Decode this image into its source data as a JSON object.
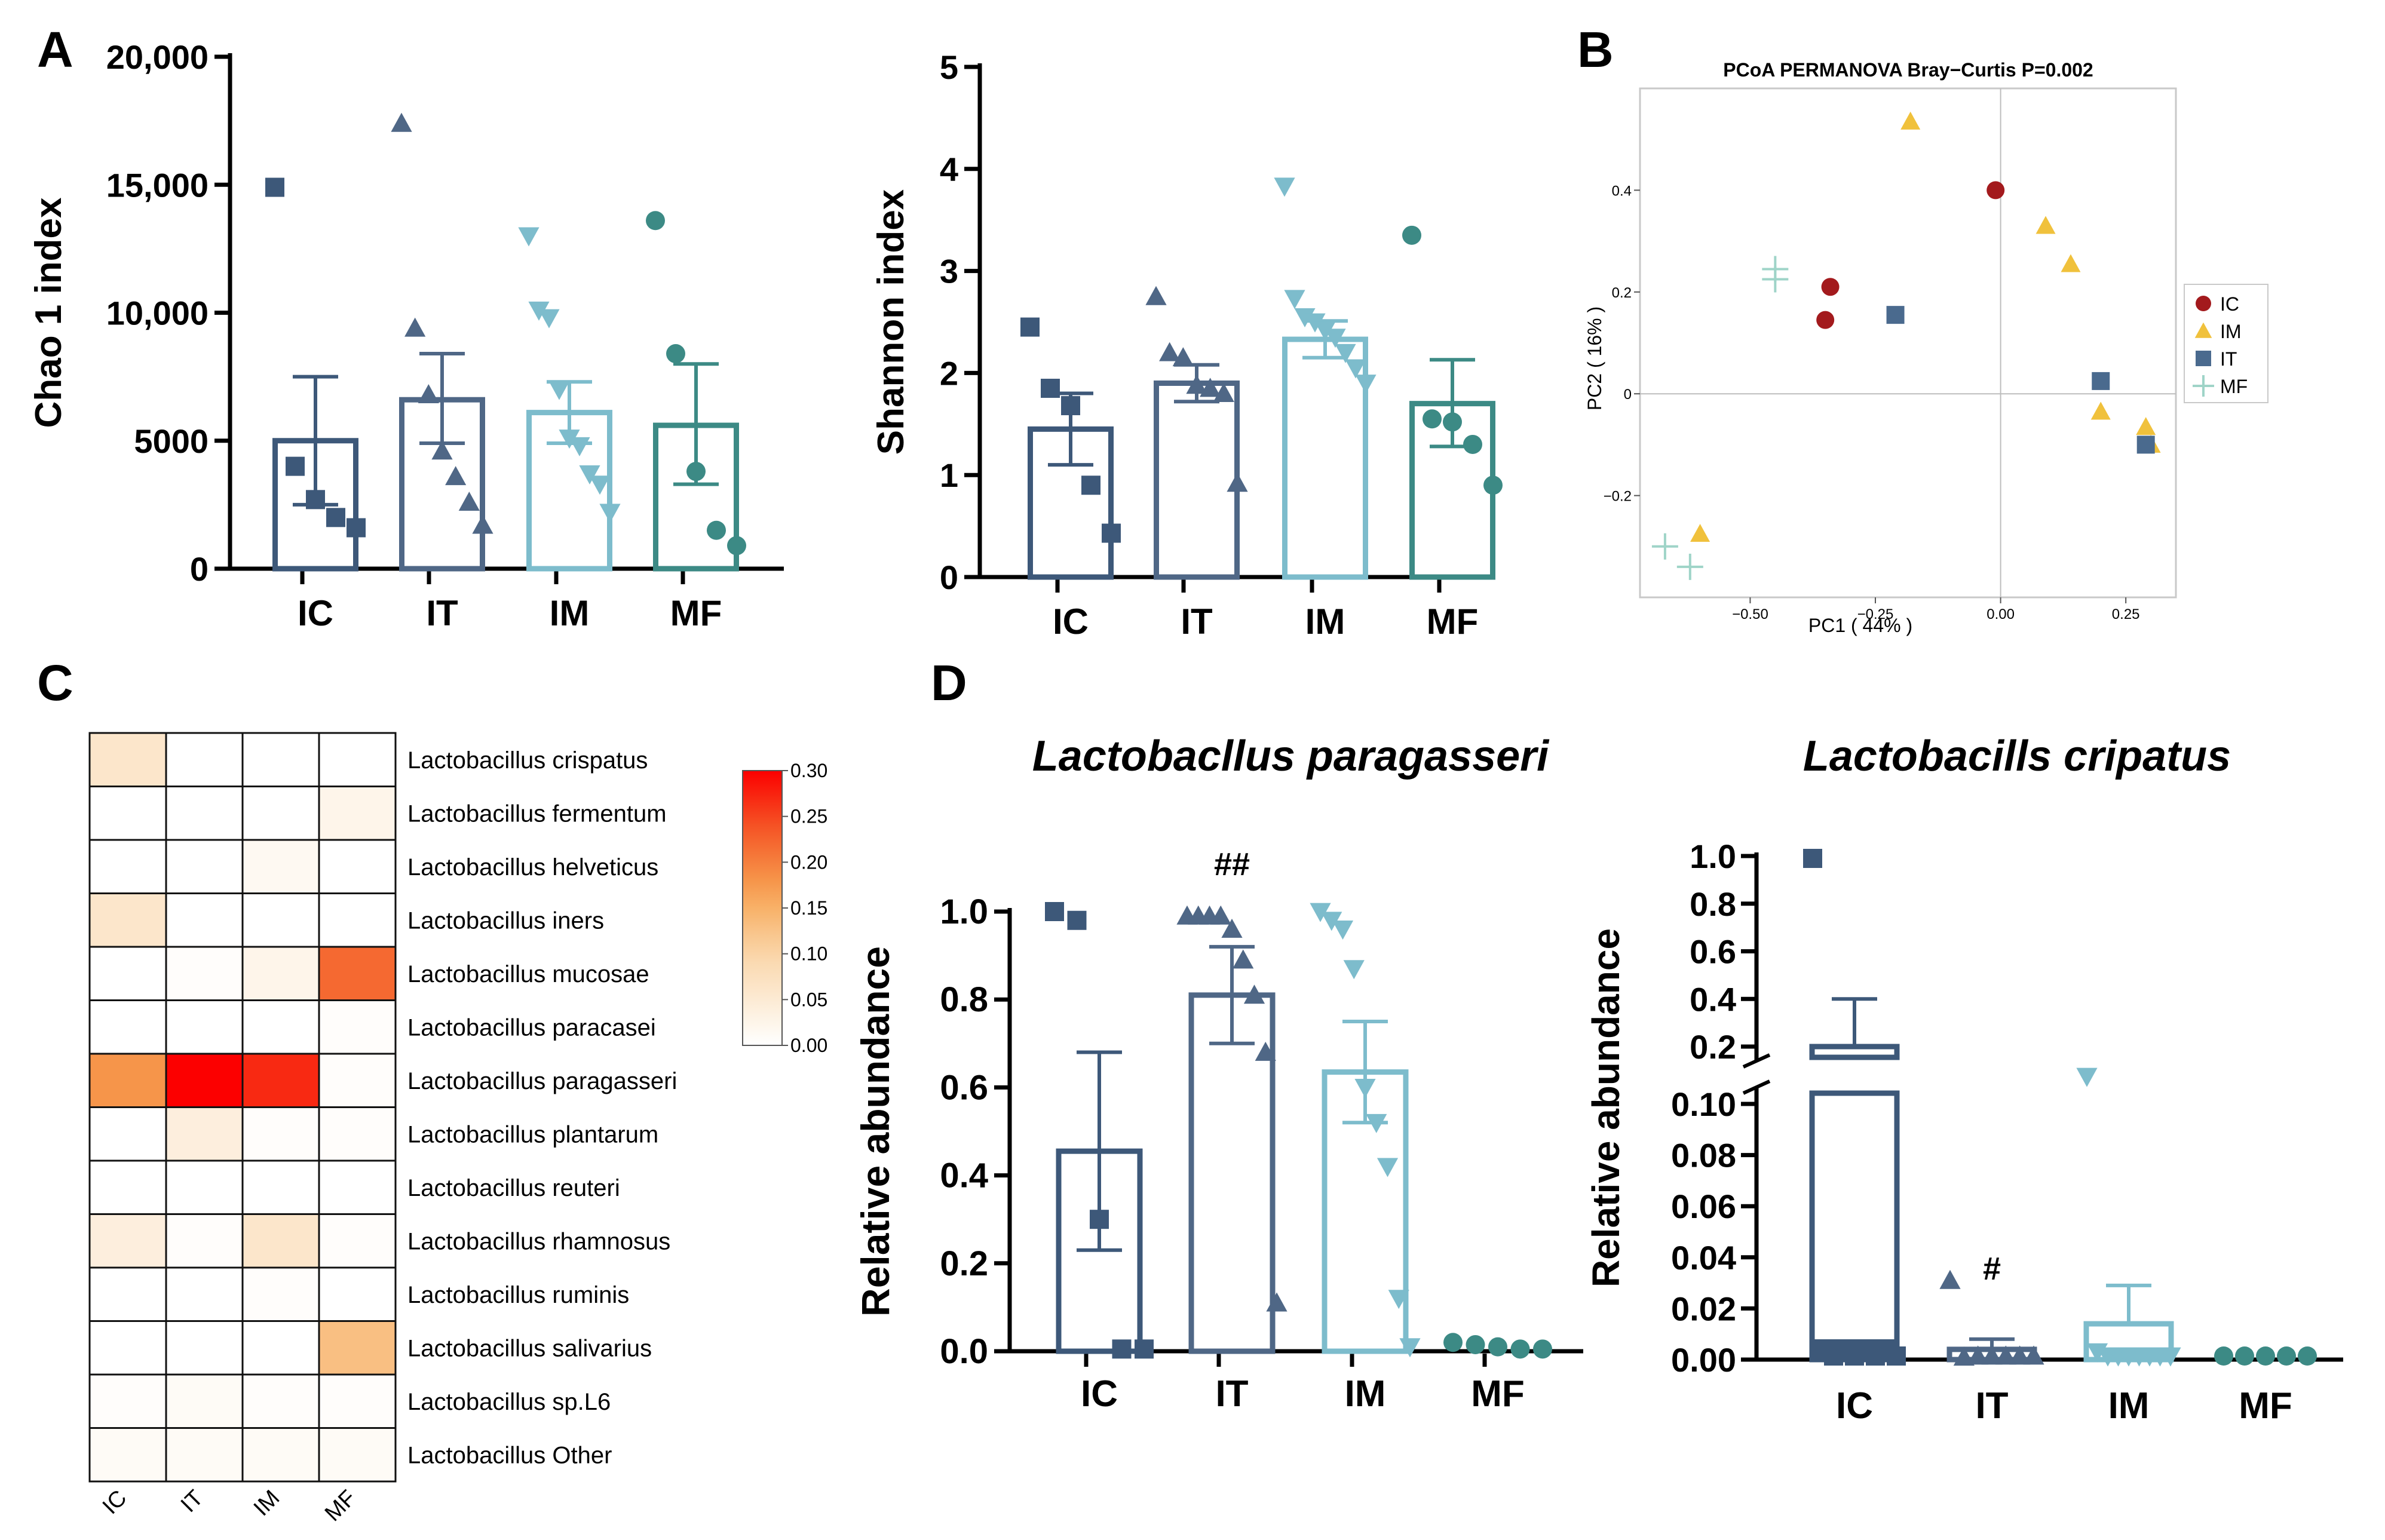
{
  "panel_labels": {
    "a": "A",
    "b": "B",
    "c": "C",
    "d": "D"
  },
  "colors": {
    "IC": "#3d5879",
    "IT": "#4f6786",
    "IM": "#7dbccc",
    "MF": "#3c8a85",
    "pcoa_IC": "#a31a1d",
    "pcoa_IM": "#f0c13c",
    "pcoa_IT": "#4a6a8e",
    "pcoa_MF": "#9fd4c8"
  },
  "chart_data": [
    {
      "id": "chao1",
      "type": "bar",
      "title": "",
      "ylabel": "Chao 1 index",
      "xlabel": "",
      "categories": [
        "IC",
        "IT",
        "IM",
        "MF"
      ],
      "ylim": [
        0,
        20000
      ],
      "yticks": [
        "0",
        "5000",
        "10,000",
        "15,000",
        "20,000"
      ],
      "means": [
        5000,
        6600,
        6100,
        5600
      ],
      "sem_low": [
        2500,
        4900,
        4900,
        3300
      ],
      "sem_high": [
        7500,
        8400,
        7300,
        8000
      ],
      "points": [
        [
          14900,
          4000,
          2700,
          2000,
          1600
        ],
        [
          17400,
          9400,
          6800,
          4600,
          3600,
          2600,
          1700
        ],
        [
          13000,
          10100,
          9800,
          7000,
          5100,
          4800,
          3700,
          3300,
          2200
        ],
        [
          13600,
          8400,
          3800,
          1500,
          900
        ]
      ]
    },
    {
      "id": "shannon",
      "type": "bar",
      "title": "",
      "ylabel": "Shannon index",
      "xlabel": "",
      "categories": [
        "IC",
        "IT",
        "IM",
        "MF"
      ],
      "ylim": [
        0,
        5
      ],
      "yticks": [
        "0",
        "1",
        "2",
        "3",
        "4",
        "5"
      ],
      "means": [
        1.45,
        1.9,
        2.33,
        1.7
      ],
      "sem_low": [
        1.1,
        1.72,
        2.15,
        1.28
      ],
      "sem_high": [
        1.8,
        2.08,
        2.51,
        2.13
      ],
      "points": [
        [
          2.45,
          1.85,
          1.68,
          0.9,
          0.43
        ],
        [
          2.75,
          2.2,
          2.15,
          1.88,
          1.85,
          1.8,
          0.92
        ],
        [
          3.83,
          2.73,
          2.55,
          2.5,
          2.42,
          2.35,
          2.2,
          2.05,
          1.9
        ],
        [
          3.35,
          1.55,
          1.52,
          1.3,
          0.9
        ]
      ]
    },
    {
      "id": "pcoa",
      "type": "scatter",
      "title": "PCoA PERMANOVA Bray−Curtis P=0.002",
      "xlabel": "PC1 ( 44% )",
      "ylabel": "PC2 ( 16% )",
      "xlim": [
        -0.72,
        0.35
      ],
      "ylim": [
        -0.4,
        0.6
      ],
      "xticks": [
        {
          "v": -0.5,
          "label": "−0.50"
        },
        {
          "v": -0.25,
          "label": "−0.25"
        },
        {
          "v": 0.0,
          "label": "0.00"
        },
        {
          "v": 0.25,
          "label": "0.25"
        }
      ],
      "yticks": [
        {
          "v": 0.4,
          "label": "0.4"
        },
        {
          "v": 0.2,
          "label": "0.2"
        },
        {
          "v": 0.0,
          "label": "0"
        },
        {
          "v": -0.2,
          "label": "−0.2"
        }
      ],
      "legend": [
        "IC",
        "IM",
        "IT",
        "MF"
      ],
      "legend_position": "right",
      "series": [
        {
          "name": "IC",
          "shape": "circle",
          "x": [
            -0.01,
            -0.34,
            -0.35
          ],
          "y": [
            0.4,
            0.21,
            0.145
          ]
        },
        {
          "name": "IM",
          "shape": "triangle",
          "x": [
            -0.18,
            0.09,
            0.14,
            0.2,
            0.29,
            0.3,
            -0.6
          ],
          "y": [
            0.535,
            0.33,
            0.255,
            -0.035,
            -0.065,
            -0.1,
            -0.275
          ]
        },
        {
          "name": "IT",
          "shape": "square",
          "x": [
            -0.21,
            0.2,
            0.29
          ],
          "y": [
            0.155,
            0.025,
            -0.1
          ]
        },
        {
          "name": "MF",
          "shape": "plus",
          "x": [
            -0.45,
            -0.45,
            -0.67,
            -0.62
          ],
          "y": [
            0.245,
            0.225,
            -0.3,
            -0.34
          ]
        }
      ]
    },
    {
      "id": "heatmap",
      "type": "heatmap",
      "columns": [
        "IC",
        "IT",
        "IM",
        "MF"
      ],
      "rows": [
        "Lactobacillus crispatus",
        "Lactobacillus fermentum",
        "Lactobacillus helveticus",
        "Lactobacillus iners",
        "Lactobacillus mucosae",
        "Lactobacillus paracasei",
        "Lactobacillus paragasseri",
        "Lactobacillus plantarum",
        "Lactobacillus reuteri",
        "Lactobacillus rhamnosus",
        "Lactobacillus ruminis",
        "Lactobacillus salivarius",
        "Lactobacillus sp.L6",
        "Lactobacillus Other"
      ],
      "values": [
        [
          0.06,
          0.0,
          0.0,
          0.0
        ],
        [
          0.0,
          0.0,
          0.0,
          0.025
        ],
        [
          0.0,
          0.0,
          0.015,
          0.0
        ],
        [
          0.06,
          0.0,
          0.0,
          0.0
        ],
        [
          0.0,
          0.005,
          0.025,
          0.22
        ],
        [
          0.0,
          0.0,
          0.0,
          0.005
        ],
        [
          0.18,
          0.3,
          0.27,
          0.005
        ],
        [
          0.0,
          0.04,
          0.005,
          0.005
        ],
        [
          0.0,
          0.0,
          0.0,
          0.0
        ],
        [
          0.04,
          0.005,
          0.06,
          0.005
        ],
        [
          0.0,
          0.0,
          0.005,
          0.0
        ],
        [
          0.0,
          0.0,
          0.0,
          0.13
        ],
        [
          0.005,
          0.01,
          0.005,
          0.005
        ],
        [
          0.01,
          0.01,
          0.01,
          0.01
        ]
      ],
      "colorbar": {
        "min": 0.0,
        "max": 0.3,
        "ticks": [
          "0.30",
          "0.25",
          "0.20",
          "0.15",
          "0.10",
          "0.05",
          "0.00"
        ]
      }
    },
    {
      "id": "paragasseri",
      "type": "bar",
      "title": "Lactobacllus paragasseri",
      "ylabel": "Relative abundance",
      "xlabel": "",
      "categories": [
        "IC",
        "IT",
        "IM",
        "MF"
      ],
      "ylim": [
        0,
        1.0
      ],
      "yticks": [
        "0.0",
        "0.2",
        "0.4",
        "0.6",
        "0.8",
        "1.0"
      ],
      "means": [
        0.455,
        0.81,
        0.635,
        0.0
      ],
      "sem_low": [
        0.23,
        0.7,
        0.52,
        0.0
      ],
      "sem_high": [
        0.68,
        0.92,
        0.75,
        0.0
      ],
      "annotations": [
        "",
        "##",
        "",
        ""
      ],
      "points": [
        [
          1.0,
          0.98,
          0.3,
          0.005,
          0.005
        ],
        [
          0.99,
          0.99,
          0.99,
          0.99,
          0.96,
          0.89,
          0.81,
          0.68,
          0.11
        ],
        [
          1.0,
          0.98,
          0.96,
          0.87,
          0.6,
          0.52,
          0.42,
          0.12,
          0.01
        ],
        [
          0.02,
          0.015,
          0.01,
          0.005,
          0.005
        ]
      ]
    },
    {
      "id": "crispatus",
      "type": "bar",
      "title": "Lactobacills cripatus",
      "ylabel": "Relative abundance",
      "xlabel": "",
      "categories": [
        "IC",
        "IT",
        "IM",
        "MF"
      ],
      "axis_break": true,
      "ylim_lower": [
        0,
        0.1
      ],
      "ylim_upper": [
        0.1,
        1.0
      ],
      "yticks_lower": [
        "0.00",
        "0.02",
        "0.04",
        "0.06",
        "0.08",
        "0.10"
      ],
      "yticks_upper": [
        "0.2",
        "0.4",
        "0.6",
        "0.8",
        "1.0"
      ],
      "means": [
        0.2,
        0.004,
        0.014,
        0.0
      ],
      "sem_low": [
        0.0,
        0.0,
        0.0,
        0.0
      ],
      "sem_high": [
        0.4,
        0.008,
        0.029,
        0.0
      ],
      "annotations": [
        "",
        "#",
        "",
        ""
      ],
      "points": [
        [
          0.99,
          0.0,
          0.0,
          0.0,
          0.0
        ],
        [
          0.031,
          0.001,
          0.0,
          0.0,
          0.0,
          0.0,
          0.0
        ],
        [
          0.16,
          0.003,
          0.0,
          0.0,
          0.0,
          0.0,
          0.0,
          0.0,
          0.0
        ],
        [
          0.0,
          0.0,
          0.0,
          0.0,
          0.0
        ]
      ]
    }
  ]
}
